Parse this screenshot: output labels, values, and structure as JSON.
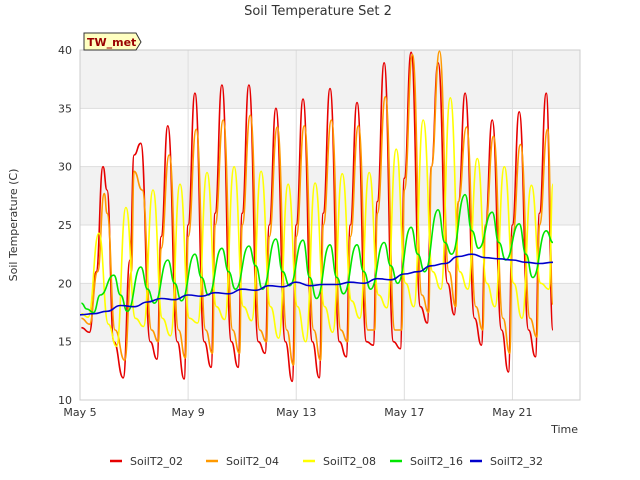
{
  "chart_data": {
    "type": "line",
    "title": "Soil Temperature Set 2",
    "xlabel": "Time",
    "ylabel": "Soil Temperature (C)",
    "badge": "TW_met",
    "ylim": [
      10,
      40
    ],
    "yticks": [
      10,
      15,
      20,
      25,
      30,
      35,
      40
    ],
    "xlim": [
      0,
      18
    ],
    "xticks": [
      {
        "x": 0,
        "label": "May 5"
      },
      {
        "x": 4,
        "label": "May 9"
      },
      {
        "x": 8,
        "label": "May 13"
      },
      {
        "x": 12,
        "label": "May 17"
      },
      {
        "x": 16,
        "label": "May 21"
      }
    ],
    "x_unit": "days after May 5 00:00",
    "grid": true,
    "legend_position": "bottom",
    "colors": {
      "band": "#f2f2f2",
      "grid": "#dddddd",
      "badge_fill": "#ffffc0"
    },
    "series": [
      {
        "name": "SoilT2_02",
        "color": "#e60000",
        "x": [
          0.05,
          0.35,
          0.6,
          0.85,
          1.0,
          1.25,
          1.6,
          1.85,
          2.0,
          2.25,
          2.6,
          2.85,
          3.0,
          3.25,
          3.6,
          3.85,
          4.0,
          4.25,
          4.6,
          4.85,
          5.0,
          5.25,
          5.6,
          5.85,
          6.0,
          6.25,
          6.6,
          6.85,
          7.0,
          7.25,
          7.6,
          7.85,
          8.0,
          8.25,
          8.6,
          8.85,
          9.0,
          9.25,
          9.6,
          9.85,
          10.0,
          10.25,
          10.6,
          10.85,
          11.0,
          11.25,
          11.6,
          11.85,
          12.0,
          12.25,
          12.6,
          12.85,
          13.0,
          13.25,
          13.6,
          13.85,
          14.0,
          14.25,
          14.6,
          14.85,
          15.0,
          15.25,
          15.6,
          15.85,
          16.0,
          16.25,
          16.6,
          16.85,
          17.0,
          17.25,
          17.5
        ],
        "y": [
          16.2,
          15.8,
          21,
          30,
          28,
          15,
          11.9,
          22,
          31,
          32,
          15,
          13.5,
          24,
          33.5,
          15,
          11.8,
          25,
          36.3,
          15,
          12.8,
          26,
          37,
          15,
          12.8,
          26,
          37,
          15,
          14,
          25,
          35,
          15,
          11.6,
          25,
          35.8,
          15,
          11.9,
          26,
          36.7,
          15,
          13.7,
          25,
          35.5,
          15,
          14.7,
          27,
          38.9,
          15,
          14.4,
          29,
          39.8,
          18,
          16.6,
          30,
          38.9,
          20,
          17.3,
          27,
          36.3,
          17,
          14.7,
          25,
          34,
          16,
          12.4,
          25,
          34.7,
          16,
          13.7,
          26,
          36.3,
          16
        ]
      },
      {
        "name": "SoilT2_04",
        "color": "#ff9900",
        "x": [
          0.05,
          0.35,
          0.65,
          0.9,
          1.0,
          1.3,
          1.65,
          1.9,
          2.0,
          2.3,
          2.65,
          2.9,
          3.0,
          3.3,
          3.65,
          3.9,
          4.0,
          4.3,
          4.65,
          4.9,
          5.0,
          5.3,
          5.65,
          5.9,
          6.0,
          6.3,
          6.65,
          6.9,
          7.0,
          7.3,
          7.65,
          7.9,
          8.0,
          8.3,
          8.65,
          8.9,
          9.0,
          9.3,
          9.65,
          9.9,
          10.0,
          10.3,
          10.65,
          10.9,
          11.0,
          11.3,
          11.65,
          11.9,
          12.0,
          12.3,
          12.65,
          12.9,
          13.0,
          13.3,
          13.65,
          13.9,
          14.0,
          14.3,
          14.65,
          14.9,
          15.0,
          15.3,
          15.65,
          15.9,
          16.0,
          16.3,
          16.65,
          16.9,
          17.0,
          17.3,
          17.5
        ],
        "y": [
          17,
          16.5,
          21,
          27.7,
          26,
          16,
          13.4,
          21,
          29.6,
          28,
          16,
          15,
          23,
          31,
          16,
          13.6,
          24,
          33.2,
          16,
          14,
          25,
          34,
          16,
          14,
          25,
          34.4,
          16,
          15,
          24,
          33.4,
          16,
          13,
          24,
          33.5,
          16,
          13.4,
          25,
          34,
          16,
          15,
          24,
          33.5,
          16,
          16,
          26,
          36,
          16,
          16,
          28,
          39.6,
          19,
          17.5,
          30,
          39.9,
          21,
          18,
          27,
          33.4,
          18,
          16,
          25,
          32.6,
          17,
          14,
          24,
          31.9,
          17,
          15.4,
          25,
          33.2,
          18.2
        ]
      },
      {
        "name": "SoilT2_08",
        "color": "#ffff00",
        "x": [
          0.05,
          0.3,
          0.7,
          1.05,
          1.35,
          1.7,
          2.05,
          2.35,
          2.7,
          3.05,
          3.35,
          3.7,
          4.05,
          4.35,
          4.7,
          5.05,
          5.35,
          5.7,
          6.05,
          6.35,
          6.7,
          7.05,
          7.35,
          7.7,
          8.05,
          8.35,
          8.7,
          9.05,
          9.35,
          9.7,
          10.05,
          10.35,
          10.7,
          11.05,
          11.35,
          11.7,
          12.05,
          12.35,
          12.7,
          13.05,
          13.35,
          13.7,
          14.05,
          14.35,
          14.7,
          15.05,
          15.35,
          15.7,
          16.05,
          16.35,
          16.7,
          17.05,
          17.35,
          17.5
        ],
        "y": [
          17.4,
          17.1,
          24.3,
          16.5,
          14.6,
          26.5,
          17,
          16.3,
          28,
          17,
          15.5,
          28.5,
          17,
          16.6,
          29.5,
          18,
          16.9,
          30,
          18,
          16.8,
          29.6,
          18,
          15.3,
          28.5,
          18,
          15,
          28.6,
          18,
          15.8,
          29.4,
          18.5,
          17,
          29.5,
          19,
          17.9,
          31.5,
          20,
          18,
          34,
          21,
          19.5,
          35.9,
          21,
          19.5,
          30.7,
          20,
          18,
          30,
          20,
          17,
          28.4,
          20,
          19.5,
          28.5
        ]
      },
      {
        "name": "SoilT2_16",
        "color": "#00e600",
        "x": [
          0.05,
          0.25,
          0.5,
          0.75,
          1.25,
          1.5,
          1.75,
          2.25,
          2.5,
          2.75,
          3.25,
          3.5,
          3.75,
          4.25,
          4.5,
          4.75,
          5.25,
          5.5,
          5.75,
          6.25,
          6.5,
          6.75,
          7.25,
          7.5,
          7.75,
          8.25,
          8.5,
          8.75,
          9.25,
          9.5,
          9.75,
          10.25,
          10.5,
          10.75,
          11.25,
          11.5,
          11.75,
          12.25,
          12.5,
          12.75,
          13.25,
          13.5,
          13.75,
          14.25,
          14.5,
          14.75,
          15.25,
          15.5,
          15.75,
          16.25,
          16.5,
          16.75,
          17.25,
          17.5
        ],
        "y": [
          18.3,
          17.8,
          17.5,
          19,
          20.7,
          19,
          17.6,
          21.4,
          19.5,
          18.3,
          22,
          20,
          18.5,
          22.5,
          20.5,
          19,
          23,
          21,
          19.5,
          23.2,
          21.5,
          19.5,
          23.8,
          21,
          19.8,
          23.7,
          20.5,
          18.7,
          23.3,
          20.5,
          19.1,
          23.3,
          21,
          19.5,
          23.5,
          21.5,
          20,
          24.8,
          22.5,
          21,
          26.3,
          23.5,
          22.5,
          27.6,
          24.5,
          23,
          26.1,
          23.5,
          22,
          25.1,
          22.5,
          20.5,
          24.5,
          23.5
        ]
      },
      {
        "name": "SoilT2_32",
        "color": "#0000cc",
        "x": [
          0,
          0.5,
          1,
          1.5,
          2,
          2.5,
          3,
          3.5,
          4,
          4.5,
          5,
          5.5,
          6,
          6.5,
          7,
          7.5,
          8,
          8.5,
          9,
          9.5,
          10,
          10.5,
          11,
          11.5,
          12,
          12.5,
          13,
          13.5,
          14,
          14.5,
          15,
          15.5,
          16,
          16.5,
          17,
          17.5
        ],
        "y": [
          17.3,
          17.4,
          17.6,
          18.1,
          18.0,
          18.4,
          18.7,
          18.6,
          19.0,
          18.9,
          19.2,
          19.1,
          19.5,
          19.4,
          19.8,
          19.7,
          20.1,
          19.8,
          19.9,
          19.9,
          20.1,
          20.0,
          20.4,
          20.3,
          20.8,
          21.0,
          21.5,
          21.7,
          22.3,
          22.5,
          22.2,
          22.1,
          22.0,
          21.8,
          21.7,
          21.8
        ]
      }
    ]
  }
}
